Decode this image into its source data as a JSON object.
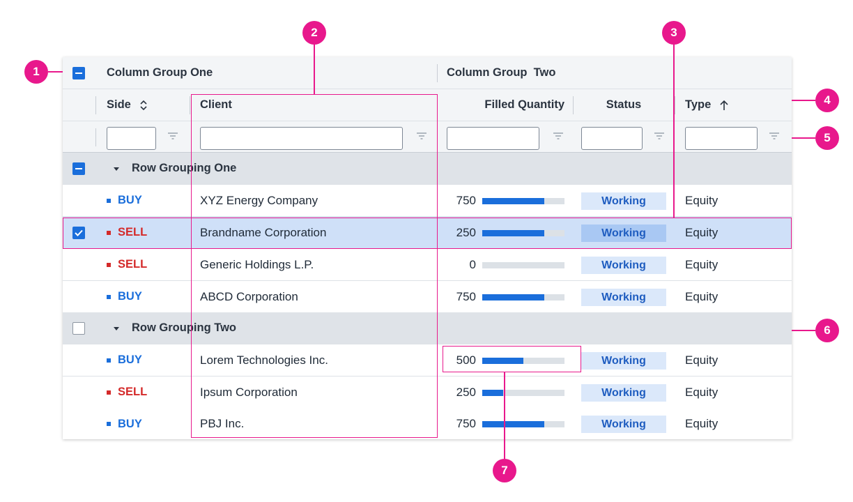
{
  "colors": {
    "accent": "#1a6edb",
    "buy": "#1a6edb",
    "sell": "#d42a2a",
    "callout": "#e8188c",
    "status_bg": "#dbe8fa",
    "status_text": "#1f5dc0",
    "group_bg": "#dfe3e8",
    "selected_bg": "#cfe0f8"
  },
  "column_groups": {
    "one": "Column Group One",
    "two": "Column Group  Two"
  },
  "columns": {
    "side": "Side",
    "side_sort_icon": "sort-both-icon",
    "client": "Client",
    "filled_quantity": "Filled Quantity",
    "status": "Status",
    "type": "Type",
    "type_sort_icon": "sort-ascending-icon"
  },
  "filters": {
    "side": "",
    "client": "",
    "filled_quantity": "",
    "status": "",
    "type": ""
  },
  "groups": [
    {
      "label": "Row Grouping One",
      "checkbox": "indeterminate",
      "rows": [
        {
          "side": "BUY",
          "client": "XYZ Energy Company",
          "filled": "750",
          "fill_pct": 75,
          "status": "Working",
          "type": "Equity",
          "selected": false
        },
        {
          "side": "SELL",
          "client": "Brandname Corporation",
          "filled": "250",
          "fill_pct": 75,
          "status": "Working",
          "type": "Equity",
          "selected": true
        },
        {
          "side": "SELL",
          "client": "Generic Holdings L.P.",
          "filled": "0",
          "fill_pct": 0,
          "status": "Working",
          "type": "Equity",
          "selected": false
        },
        {
          "side": "BUY",
          "client": "ABCD Corporation",
          "filled": "750",
          "fill_pct": 75,
          "status": "Working",
          "type": "Equity",
          "selected": false
        }
      ]
    },
    {
      "label": "Row Grouping Two",
      "checkbox": "unchecked",
      "rows": [
        {
          "side": "BUY",
          "client": "Lorem Technologies Inc.",
          "filled": "500",
          "fill_pct": 50,
          "status": "Working",
          "type": "Equity",
          "selected": false
        },
        {
          "side": "SELL",
          "client": "Ipsum Corporation",
          "filled": "250",
          "fill_pct": 25,
          "status": "Working",
          "type": "Equity",
          "selected": false
        },
        {
          "side": "BUY",
          "client": "PBJ Inc.",
          "filled": "750",
          "fill_pct": 75,
          "status": "Working",
          "type": "Equity",
          "selected": false
        }
      ]
    }
  ],
  "callouts": [
    "1",
    "2",
    "3",
    "4",
    "5",
    "6",
    "7"
  ]
}
